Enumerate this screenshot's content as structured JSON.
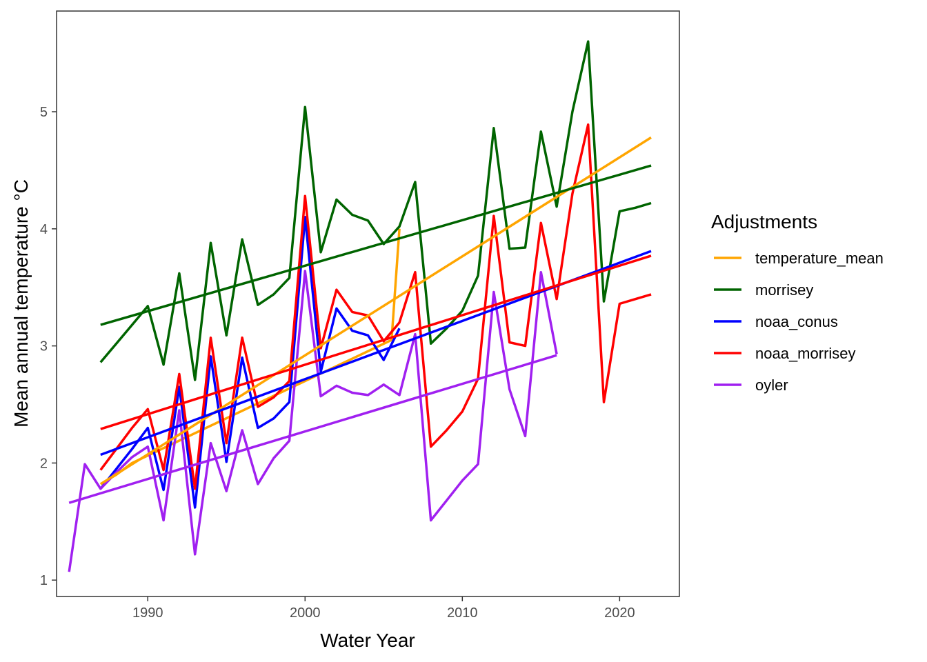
{
  "chart_data": {
    "type": "line",
    "title": "",
    "xlabel": "Water Year",
    "ylabel": "Mean annual temperature °C",
    "xlim": [
      1984.2,
      2023.8
    ],
    "ylim": [
      0.86,
      5.86
    ],
    "x_ticks": [
      1990,
      2000,
      2010,
      2020
    ],
    "y_ticks": [
      1,
      2,
      3,
      4,
      5
    ],
    "grid": false,
    "legend": {
      "title": "Adjustments",
      "placement": "right"
    },
    "series": [
      {
        "name": "temperature_mean",
        "color": "#FFA500",
        "points": [
          [
            1987,
            1.82
          ],
          [
            1988,
            1.9
          ],
          [
            1989,
            2.0
          ],
          [
            2005.5,
            3.05
          ],
          [
            2006,
            4.0
          ]
        ],
        "trend": [
          [
            1987,
            1.82
          ],
          [
            2022,
            4.78
          ]
        ]
      },
      {
        "name": "morrisey",
        "color": "#006400",
        "points": [
          [
            1987,
            2.86
          ],
          [
            1988,
            3.02
          ],
          [
            1989,
            3.18
          ],
          [
            1990,
            3.34
          ],
          [
            1991,
            2.84
          ],
          [
            1992,
            3.62
          ],
          [
            1993,
            2.71
          ],
          [
            1994,
            3.88
          ],
          [
            1995,
            3.09
          ],
          [
            1996,
            3.91
          ],
          [
            1997,
            3.35
          ],
          [
            1998,
            3.44
          ],
          [
            1999,
            3.58
          ],
          [
            2000,
            5.04
          ],
          [
            2001,
            3.8
          ],
          [
            2002,
            4.25
          ],
          [
            2003,
            4.12
          ],
          [
            2004,
            4.07
          ],
          [
            2005,
            3.87
          ],
          [
            2006,
            4.02
          ],
          [
            2007,
            4.4
          ],
          [
            2008,
            3.02
          ],
          [
            2009,
            3.15
          ],
          [
            2010,
            3.3
          ],
          [
            2011,
            3.6
          ],
          [
            2012,
            4.86
          ],
          [
            2013,
            3.83
          ],
          [
            2014,
            3.84
          ],
          [
            2015,
            4.83
          ],
          [
            2016,
            4.19
          ],
          [
            2017,
            5.0
          ],
          [
            2018,
            5.6
          ],
          [
            2019,
            3.38
          ],
          [
            2020,
            4.15
          ],
          [
            2021,
            4.18
          ],
          [
            2022,
            4.22
          ]
        ],
        "trend": [
          [
            1987,
            3.18
          ],
          [
            2022,
            4.54
          ]
        ]
      },
      {
        "name": "noaa_conus",
        "color": "#0000FF",
        "points": [
          [
            1987,
            1.78
          ],
          [
            1988,
            1.95
          ],
          [
            1989,
            2.12
          ],
          [
            1990,
            2.3
          ],
          [
            1991,
            1.77
          ],
          [
            1992,
            2.65
          ],
          [
            1993,
            1.62
          ],
          [
            1994,
            2.91
          ],
          [
            1995,
            2.01
          ],
          [
            1996,
            2.9
          ],
          [
            1997,
            2.3
          ],
          [
            1998,
            2.38
          ],
          [
            1999,
            2.52
          ],
          [
            2000,
            4.1
          ],
          [
            2001,
            2.78
          ],
          [
            2002,
            3.32
          ],
          [
            2003,
            3.13
          ],
          [
            2004,
            3.09
          ],
          [
            2005,
            2.88
          ],
          [
            2006,
            3.15
          ]
        ],
        "trend": [
          [
            1987,
            2.07
          ],
          [
            2022,
            3.81
          ]
        ]
      },
      {
        "name": "noaa_morrisey",
        "color": "#FF0000",
        "points": [
          [
            1987,
            1.94
          ],
          [
            1988,
            2.12
          ],
          [
            1989,
            2.3
          ],
          [
            1990,
            2.46
          ],
          [
            1991,
            1.94
          ],
          [
            1992,
            2.76
          ],
          [
            1993,
            1.78
          ],
          [
            1994,
            3.07
          ],
          [
            1995,
            2.17
          ],
          [
            1996,
            3.07
          ],
          [
            1997,
            2.48
          ],
          [
            1998,
            2.56
          ],
          [
            1999,
            2.7
          ],
          [
            2000,
            4.28
          ],
          [
            2001,
            2.98
          ],
          [
            2002,
            3.48
          ],
          [
            2003,
            3.29
          ],
          [
            2004,
            3.26
          ],
          [
            2005,
            3.04
          ],
          [
            2006,
            3.2
          ],
          [
            2007,
            3.63
          ],
          [
            2008,
            2.14
          ],
          [
            2009,
            2.28
          ],
          [
            2010,
            2.44
          ],
          [
            2011,
            2.72
          ],
          [
            2012,
            4.11
          ],
          [
            2013,
            3.03
          ],
          [
            2014,
            3.0
          ],
          [
            2015,
            4.05
          ],
          [
            2016,
            3.4
          ],
          [
            2017,
            4.3
          ],
          [
            2018,
            4.89
          ],
          [
            2019,
            2.52
          ],
          [
            2020,
            3.36
          ],
          [
            2021,
            3.4
          ],
          [
            2022,
            3.44
          ]
        ],
        "trend": [
          [
            1987,
            2.29
          ],
          [
            2022,
            3.77
          ]
        ]
      },
      {
        "name": "oyler",
        "color": "#A020F0",
        "points": [
          [
            1985,
            1.07
          ],
          [
            1986,
            1.99
          ],
          [
            1987,
            1.78
          ],
          [
            1988,
            1.92
          ],
          [
            1989,
            2.05
          ],
          [
            1990,
            2.14
          ],
          [
            1991,
            1.51
          ],
          [
            1992,
            2.45
          ],
          [
            1993,
            1.22
          ],
          [
            1994,
            2.17
          ],
          [
            1995,
            1.76
          ],
          [
            1996,
            2.28
          ],
          [
            1997,
            1.82
          ],
          [
            1998,
            2.04
          ],
          [
            1999,
            2.19
          ],
          [
            2000,
            3.64
          ],
          [
            2001,
            2.57
          ],
          [
            2002,
            2.66
          ],
          [
            2003,
            2.6
          ],
          [
            2004,
            2.58
          ],
          [
            2005,
            2.67
          ],
          [
            2006,
            2.58
          ],
          [
            2007,
            3.1
          ],
          [
            2008,
            1.51
          ],
          [
            2009,
            1.68
          ],
          [
            2010,
            1.85
          ],
          [
            2011,
            1.99
          ],
          [
            2012,
            3.46
          ],
          [
            2013,
            2.63
          ],
          [
            2014,
            2.23
          ],
          [
            2015,
            3.63
          ],
          [
            2016,
            2.93
          ]
        ],
        "trend": [
          [
            1985,
            1.66
          ],
          [
            2016,
            2.92
          ]
        ]
      }
    ]
  }
}
